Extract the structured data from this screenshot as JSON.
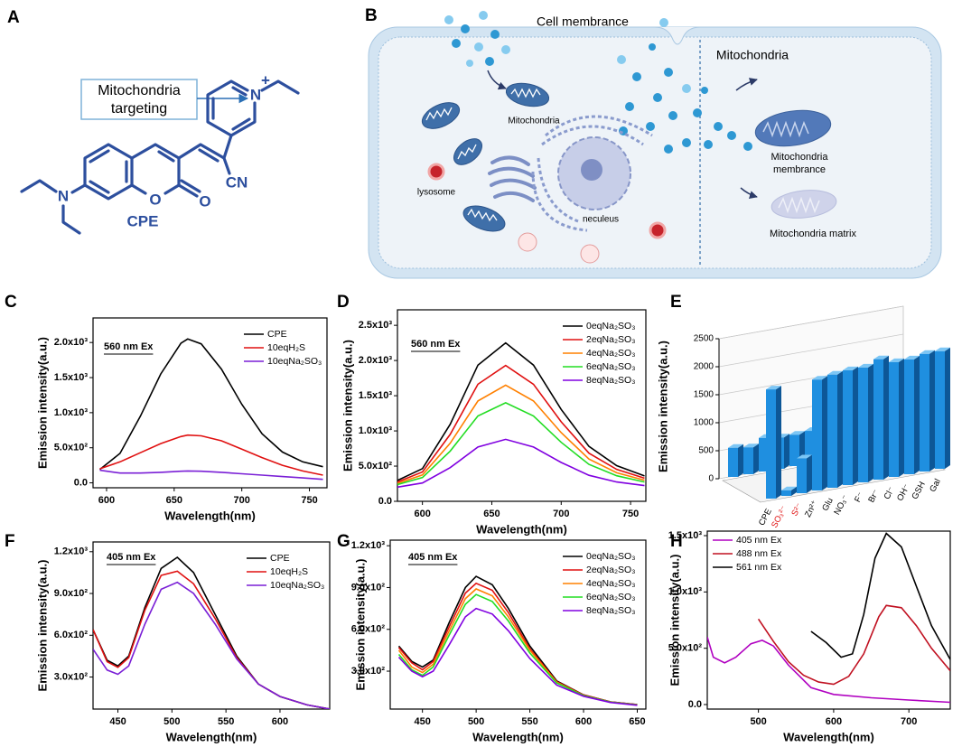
{
  "figure": {
    "A": {
      "panel_label": "A",
      "callout": [
        "Mitochondria",
        "targeting"
      ],
      "atoms": {
        "n_amine": "N",
        "n_pyridinium": "N",
        "charge": "+",
        "o_ring": "O",
        "o_keto": "O",
        "cn": "CN"
      },
      "compound": "CPE"
    },
    "B": {
      "panel_label": "B",
      "membrane": "Cell membrance",
      "region": "Mitochondria",
      "organelles": {
        "mitochondria": "Mitochondria",
        "lysosome": "lysosome",
        "nucleus": "neculeus"
      },
      "targets": {
        "membrane": [
          "Mitochondria",
          "membrance"
        ],
        "matrix": "Mitochondria matrix"
      }
    }
  },
  "chart_data": [
    {
      "type": "line",
      "panel_label": "C",
      "annotation": "560 nm Ex",
      "xlabel": "Wavelength(nm)",
      "ylabel": "Emission intensity(a.u.)",
      "x": [
        595,
        610,
        625,
        640,
        655,
        660,
        670,
        685,
        700,
        715,
        730,
        745,
        760
      ],
      "series": [
        {
          "name": "CPE",
          "color": "#000000",
          "values": [
            190,
            420,
            950,
            1550,
            1990,
            2050,
            1980,
            1620,
            1120,
            700,
            440,
            300,
            230
          ]
        },
        {
          "name": "10eqH₂S",
          "color": "#e01010",
          "values": [
            200,
            300,
            430,
            560,
            660,
            680,
            670,
            600,
            480,
            360,
            250,
            170,
            110
          ]
        },
        {
          "name": "10eqNa₂SO₃",
          "color": "#7a1fd6",
          "values": [
            180,
            140,
            140,
            150,
            165,
            170,
            165,
            150,
            130,
            110,
            90,
            70,
            50
          ]
        }
      ],
      "xlim": [
        590,
        763
      ],
      "xticks": [
        600,
        650,
        700,
        750
      ],
      "ylim": [
        -70,
        2350
      ],
      "yticks": [
        {
          "value": 0,
          "label": "0.0"
        },
        {
          "value": 500,
          "label": "5.0x10²"
        },
        {
          "value": 1000,
          "label": "1.0x10³"
        },
        {
          "value": 1500,
          "label": "1.5x10³"
        },
        {
          "value": 2000,
          "label": "2.0x10³"
        }
      ],
      "legend": "upper right"
    },
    {
      "type": "line",
      "panel_label": "D",
      "annotation": "560 nm Ex",
      "xlabel": "Wavelength(nm)",
      "ylabel": "Emission intensity(a.u.)",
      "x": [
        582,
        600,
        620,
        640,
        660,
        680,
        700,
        720,
        740,
        760
      ],
      "series": [
        {
          "name": "0eqNa₂SO₃",
          "color": "#000000",
          "values": [
            297,
            465,
            1095,
            1935,
            2250,
            1935,
            1305,
            780,
            507,
            360
          ]
        },
        {
          "name": "2eqNa₂SO₃",
          "color": "#e01010",
          "values": [
            275,
            417,
            951,
            1663,
            1930,
            1663,
            1129,
            684,
            453,
            328
          ]
        },
        {
          "name": "4eqNa₂SO₃",
          "color": "#ff8000",
          "values": [
            255,
            375,
            825,
            1425,
            1650,
            1425,
            975,
            600,
            405,
            300
          ]
        },
        {
          "name": "6eqNa₂SO₃",
          "color": "#22dd22",
          "values": [
            238,
            338,
            713,
            1213,
            1400,
            1213,
            838,
            525,
            363,
            275
          ]
        },
        {
          "name": "8eqNa₂SO₃",
          "color": "#8000e0",
          "values": [
            201,
            260,
            479,
            771,
            880,
            771,
            552,
            369,
            274,
            223
          ]
        }
      ],
      "xlim": [
        582,
        761
      ],
      "xticks": [
        600,
        650,
        700,
        750
      ],
      "ylim": [
        0,
        2720
      ],
      "yticks": [
        {
          "value": 0,
          "label": "0.0"
        },
        {
          "value": 500,
          "label": "5.0x10²"
        },
        {
          "value": 1000,
          "label": "1.0x10³"
        },
        {
          "value": 1500,
          "label": "1.5x10³"
        },
        {
          "value": 2000,
          "label": "2.0x10³"
        },
        {
          "value": 2500,
          "label": "2.5x10³"
        }
      ],
      "legend": "upper right"
    },
    {
      "type": "bar3d",
      "panel_label": "E",
      "ylabel": "Emission intensity(a.u.)",
      "categories": [
        "CPE",
        "SO₃²⁻",
        "S²⁻",
        "Zn²⁺",
        "Glu",
        "NO₃⁻",
        "F⁻",
        "Br⁻",
        "Cl⁻",
        "OH⁻",
        "GSH",
        "Gal"
      ],
      "category_colors": [
        "#000000",
        "#e01010",
        "#e01010",
        "#000000",
        "#000000",
        "#000000",
        "#000000",
        "#000000",
        "#000000",
        "#000000",
        "#000000",
        "#000000"
      ],
      "series": [
        {
          "color": "#1f8fe0",
          "values": [
            1950,
            100,
            620,
            1980,
            2020,
            2050,
            2050,
            2150,
            2050,
            2050,
            2100,
            2100
          ]
        },
        {
          "color": "#1f8fe0",
          "values": [
            520,
            480,
            600,
            560,
            560,
            580,
            600,
            620,
            640,
            680,
            640,
            600
          ]
        }
      ],
      "ylim": [
        0,
        2500
      ],
      "yticks": [
        0,
        500,
        1000,
        1500,
        2000,
        2500
      ]
    },
    {
      "type": "line",
      "panel_label": "F",
      "annotation": "405 nm Ex",
      "xlabel": "Wavelength(nm)",
      "ylabel": "Emission intensity(a.u.)",
      "x": [
        427,
        440,
        450,
        460,
        475,
        490,
        505,
        520,
        540,
        560,
        580,
        600,
        625,
        646
      ],
      "series": [
        {
          "name": "CPE",
          "color": "#000000",
          "values": [
            640,
            420,
            380,
            450,
            800,
            1080,
            1160,
            1050,
            750,
            450,
            250,
            160,
            100,
            70
          ]
        },
        {
          "name": "10eqH₂S",
          "color": "#e01010",
          "values": [
            640,
            410,
            370,
            440,
            780,
            1030,
            1060,
            970,
            720,
            440,
            250,
            160,
            100,
            70
          ]
        },
        {
          "name": "10eqNa₂SO₃",
          "color": "#7a1fd6",
          "values": [
            500,
            350,
            320,
            380,
            680,
            930,
            980,
            900,
            680,
            430,
            250,
            160,
            100,
            70
          ]
        }
      ],
      "xlim": [
        427,
        646
      ],
      "xticks": [
        450,
        500,
        550,
        600
      ],
      "ylim": [
        70,
        1270
      ],
      "yticks": [
        {
          "value": 300,
          "label": "3.0x10²"
        },
        {
          "value": 600,
          "label": "6.0x10²"
        },
        {
          "value": 900,
          "label": "9.0x10²"
        },
        {
          "value": 1200,
          "label": "1.2x10³"
        }
      ],
      "legend": "upper right"
    },
    {
      "type": "line",
      "panel_label": "G",
      "annotation": "405 nm Ex",
      "xlabel": "Wavelength(nm)",
      "ylabel": "Emission intensity(a.u.)",
      "x": [
        428,
        440,
        450,
        460,
        475,
        490,
        500,
        515,
        530,
        550,
        575,
        600,
        625,
        650
      ],
      "series": [
        {
          "name": "0eqNa₂SO₃",
          "color": "#000000",
          "values": [
            480,
            370,
            330,
            380,
            650,
            900,
            980,
            920,
            750,
            480,
            230,
            130,
            80,
            60
          ]
        },
        {
          "name": "2eqNa₂SO₃",
          "color": "#e01010",
          "values": [
            470,
            360,
            310,
            370,
            620,
            860,
            930,
            880,
            720,
            460,
            225,
            130,
            80,
            60
          ]
        },
        {
          "name": "4eqNa₂SO₃",
          "color": "#ff8000",
          "values": [
            450,
            330,
            290,
            350,
            590,
            820,
            890,
            840,
            690,
            450,
            220,
            125,
            78,
            58
          ]
        },
        {
          "name": "6eqNa₂SO₃",
          "color": "#22dd22",
          "values": [
            420,
            310,
            270,
            330,
            560,
            780,
            850,
            800,
            660,
            430,
            215,
            125,
            78,
            58
          ]
        },
        {
          "name": "8eqNa₂SO₃",
          "color": "#8000e0",
          "values": [
            400,
            300,
            260,
            300,
            490,
            690,
            750,
            710,
            590,
            390,
            200,
            120,
            75,
            55
          ]
        }
      ],
      "xlim": [
        420,
        658
      ],
      "xticks": [
        450,
        500,
        550,
        600,
        650
      ],
      "ylim": [
        28,
        1240
      ],
      "yticks": [
        {
          "value": 300,
          "label": "3.0x10²"
        },
        {
          "value": 600,
          "label": "6.0x10²"
        },
        {
          "value": 900,
          "label": "9.0x10²"
        },
        {
          "value": 1200,
          "label": "1.2x10³"
        }
      ],
      "legend": "upper right"
    },
    {
      "type": "line",
      "panel_label": "H",
      "xlabel": "Wavelength(nm)",
      "ylabel": "Emission intensity(a.u.)",
      "series": [
        {
          "name": "405 nm Ex",
          "color": "#b000c0",
          "x": [
            432,
            440,
            455,
            470,
            490,
            505,
            520,
            540,
            570,
            600,
            650,
            700,
            755
          ],
          "values": [
            600,
            420,
            370,
            420,
            540,
            570,
            520,
            350,
            150,
            90,
            60,
            40,
            20
          ]
        },
        {
          "name": "488 nm Ex",
          "color": "#c01020",
          "x": [
            500,
            520,
            540,
            560,
            580,
            600,
            620,
            640,
            660,
            670,
            690,
            710,
            730,
            755
          ],
          "values": [
            760,
            560,
            380,
            260,
            200,
            180,
            250,
            450,
            780,
            880,
            860,
            700,
            500,
            300
          ]
        },
        {
          "name": "561 nm Ex",
          "color": "#000000",
          "x": [
            570,
            590,
            610,
            625,
            640,
            655,
            670,
            690,
            710,
            730,
            755
          ],
          "values": [
            650,
            550,
            420,
            450,
            800,
            1300,
            1520,
            1400,
            1050,
            700,
            400
          ]
        }
      ],
      "xlim": [
        432,
        755
      ],
      "xticks": [
        500,
        600,
        700
      ],
      "ylim": [
        -40,
        1540
      ],
      "yticks": [
        {
          "value": 0,
          "label": "0.0"
        },
        {
          "value": 500,
          "label": "5.0x10²"
        },
        {
          "value": 1000,
          "label": "1.0x10³"
        },
        {
          "value": 1500,
          "label": "1.5x10³"
        }
      ],
      "legend": "upper left"
    }
  ]
}
